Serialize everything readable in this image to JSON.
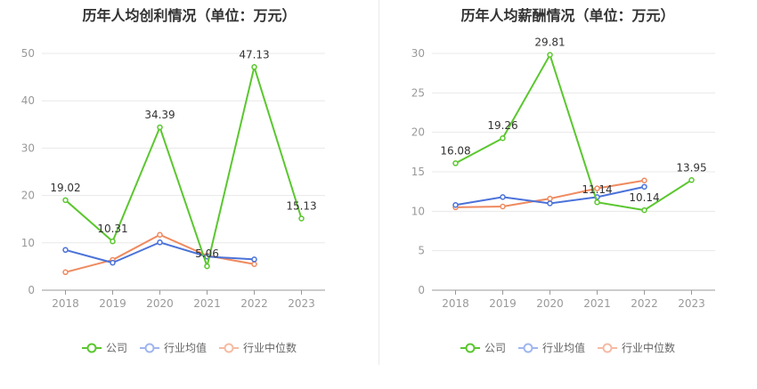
{
  "colors": {
    "company": "#5ac72e",
    "industry_avg": "#4b72d9",
    "industry_median": "#ef8a5f"
  },
  "legend": [
    {
      "label": "公司",
      "color": "#5ac72e"
    },
    {
      "label": "行业均值",
      "color": "#4b72d9"
    },
    {
      "label": "行业中位数",
      "color": "#ef8a5f"
    }
  ],
  "chart_data": [
    {
      "type": "line",
      "title": "历年人均创利情况（单位：万元）",
      "categories": [
        "2018",
        "2019",
        "2020",
        "2021",
        "2022",
        "2023"
      ],
      "ylim": [
        0,
        50
      ],
      "yticks": [
        0,
        10,
        20,
        30,
        40,
        50
      ],
      "grid": true,
      "legend_position": "bottom",
      "series": [
        {
          "name": "公司",
          "values": [
            19.02,
            10.31,
            34.39,
            5.06,
            47.13,
            15.13
          ],
          "labels": [
            "19.02",
            "10.31",
            "34.39",
            "5.06",
            "47.13",
            "15.13"
          ]
        },
        {
          "name": "行业均值",
          "values": [
            8.5,
            5.8,
            10.1,
            7.1,
            6.5,
            null
          ]
        },
        {
          "name": "行业中位数",
          "values": [
            3.8,
            6.4,
            11.7,
            7.3,
            5.5,
            null
          ]
        }
      ]
    },
    {
      "type": "line",
      "title": "历年人均薪酬情况（单位：万元）",
      "categories": [
        "2018",
        "2019",
        "2020",
        "2021",
        "2022",
        "2023"
      ],
      "ylim": [
        0,
        30
      ],
      "yticks": [
        0,
        5,
        10,
        15,
        20,
        25,
        30
      ],
      "grid": true,
      "legend_position": "bottom",
      "series": [
        {
          "name": "公司",
          "values": [
            16.08,
            19.26,
            29.81,
            11.14,
            10.14,
            13.95
          ],
          "labels": [
            "16.08",
            "19.26",
            "29.81",
            "11.14",
            "10.14",
            "13.95"
          ]
        },
        {
          "name": "行业均值",
          "values": [
            10.8,
            11.8,
            11.0,
            11.8,
            13.1,
            null
          ]
        },
        {
          "name": "行业中位数",
          "values": [
            10.5,
            10.6,
            11.6,
            12.9,
            13.9,
            null
          ]
        }
      ]
    }
  ]
}
